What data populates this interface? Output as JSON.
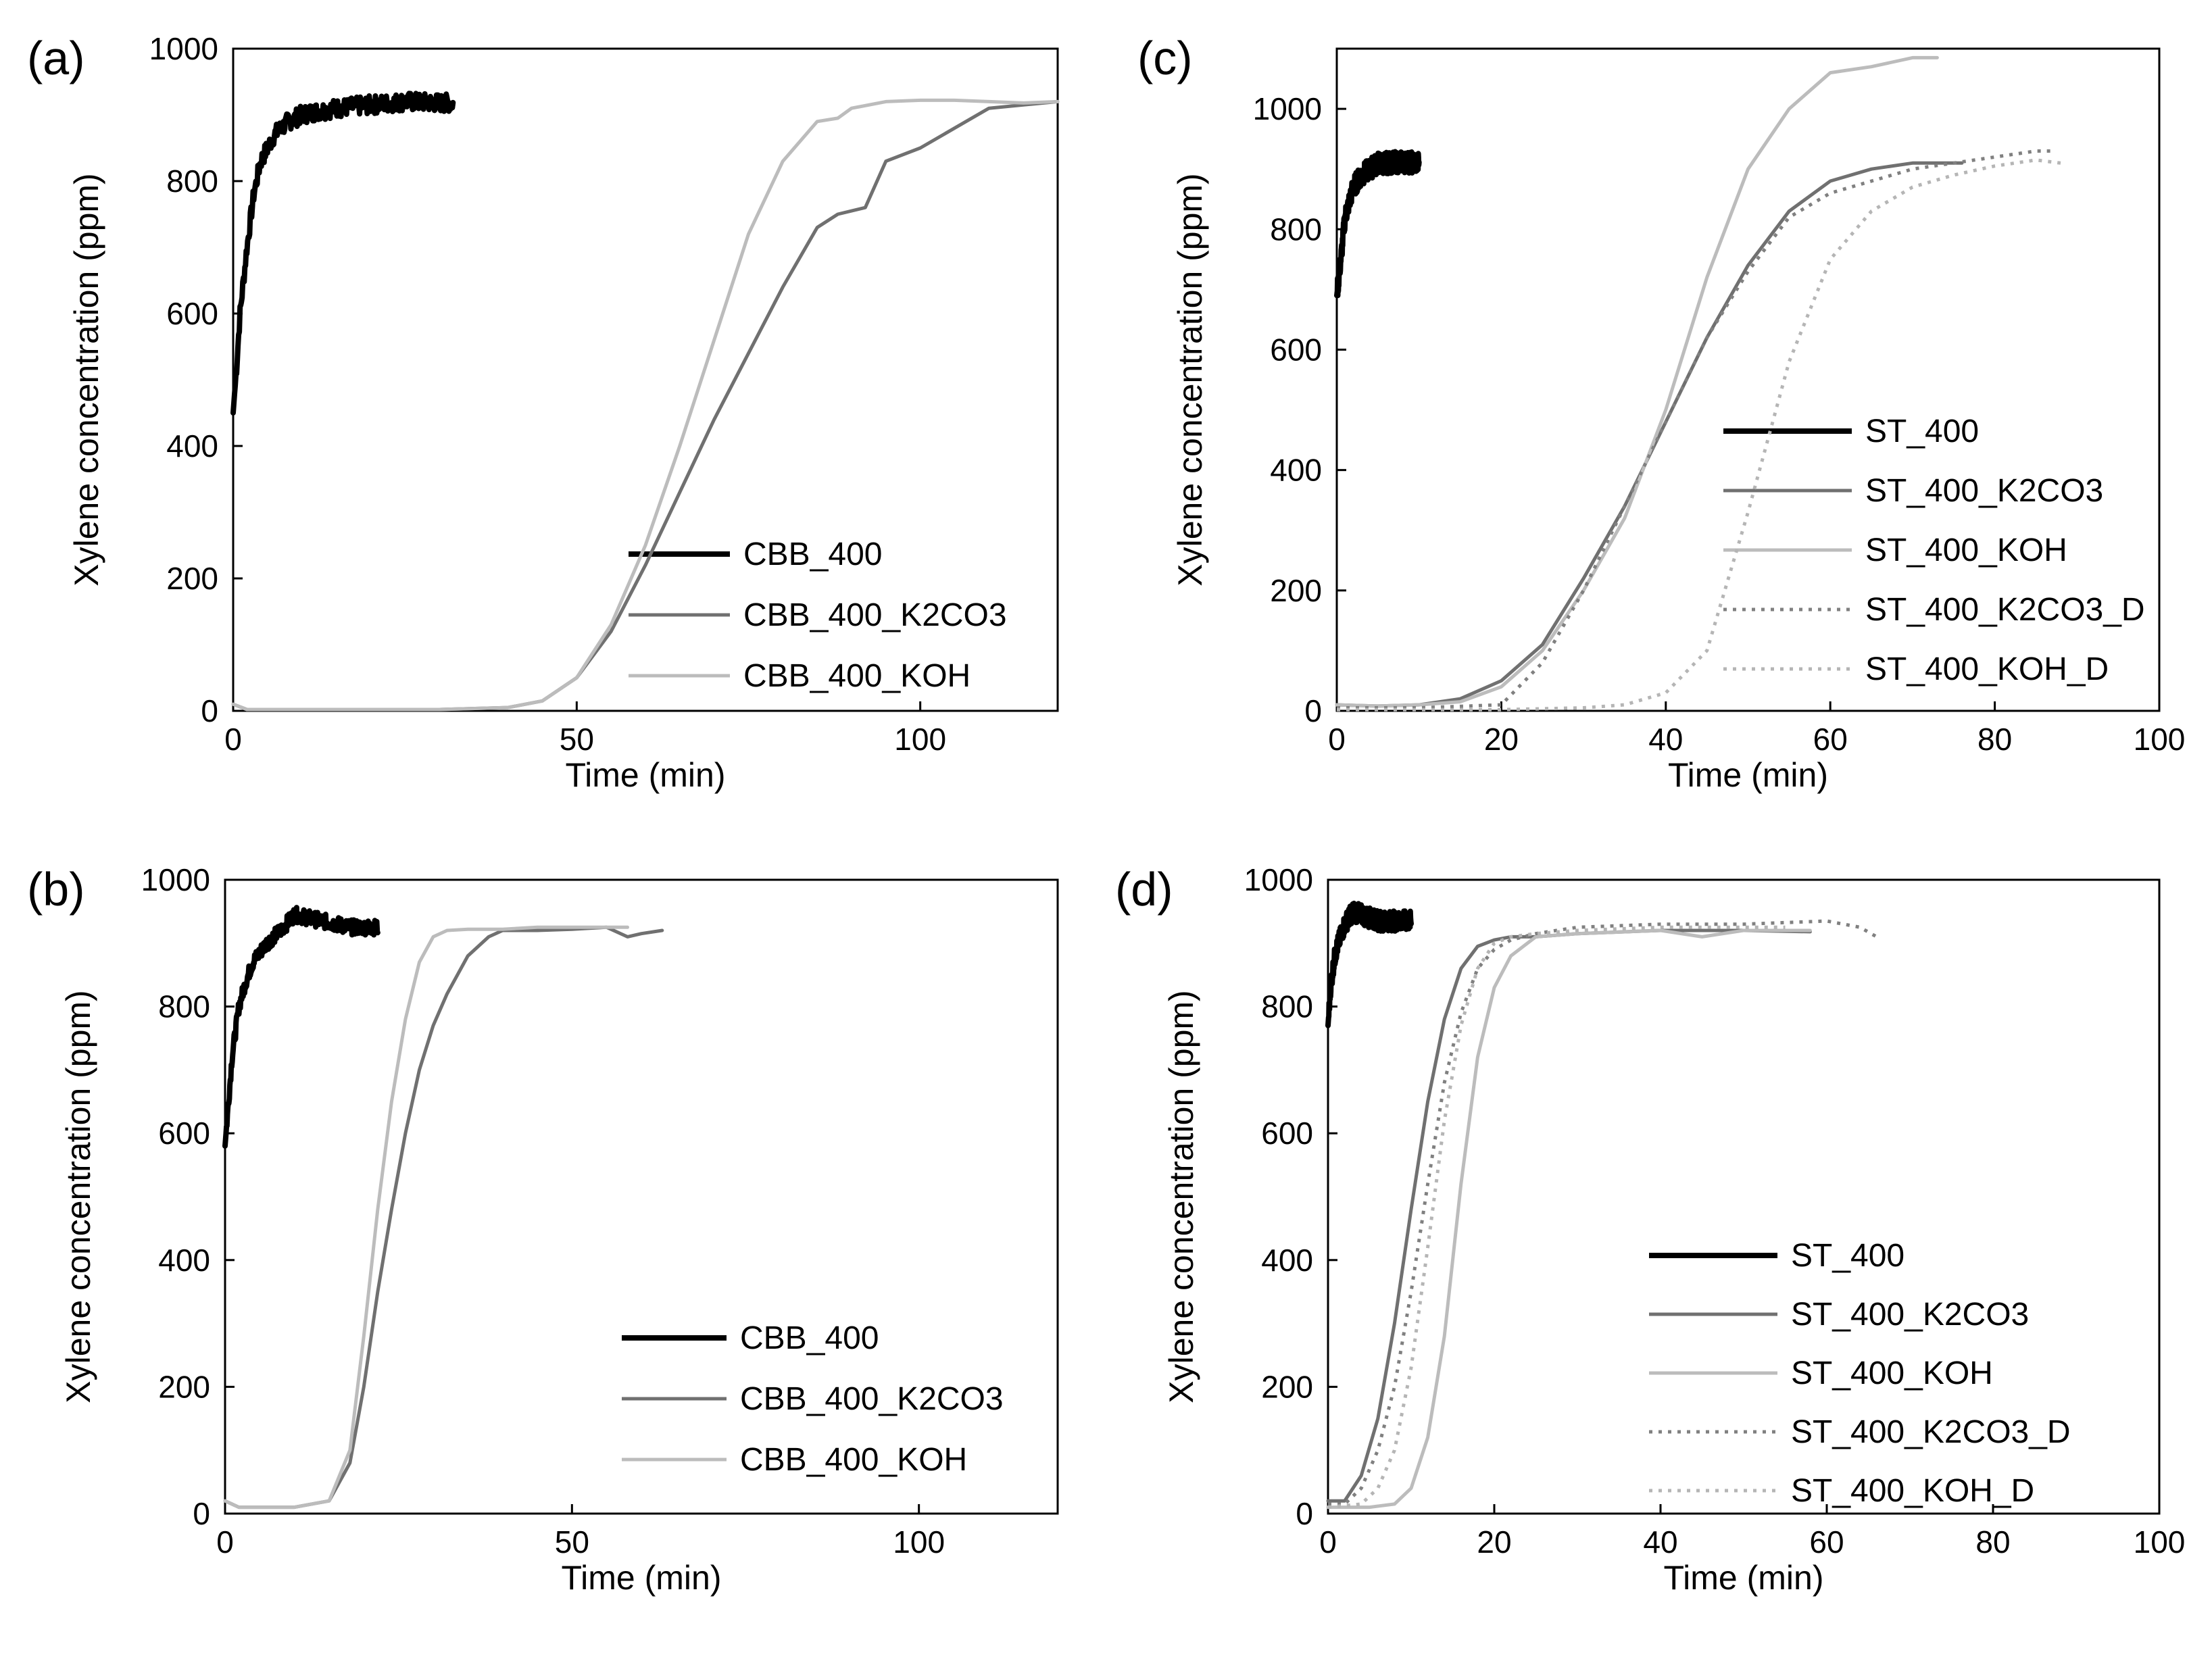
{
  "chart_data": [
    {
      "panel": "(a)",
      "type": "line",
      "xlabel": "Time (min)",
      "ylabel": "Xylene concentration (ppm)",
      "xlim": [
        0,
        120
      ],
      "ylim": [
        0,
        1000
      ],
      "xticks": [
        0,
        50,
        100
      ],
      "yticks": [
        0,
        200,
        400,
        600,
        800,
        1000
      ],
      "legend_position": "bottom-right",
      "series": [
        {
          "name": "CBB_400",
          "style": "solid",
          "color": "#000000",
          "width": 8,
          "noise": 14,
          "x": [
            0,
            0.5,
            1,
            2,
            3,
            4,
            6,
            8,
            10,
            12,
            15,
            20,
            25,
            30,
            32
          ],
          "y": [
            450,
            520,
            600,
            700,
            780,
            830,
            870,
            890,
            900,
            905,
            910,
            915,
            920,
            918,
            918
          ]
        },
        {
          "name": "CBB_400_K2CO3",
          "style": "solid",
          "color": "#707070",
          "width": 5,
          "noise": 0,
          "x": [
            0,
            2,
            10,
            20,
            30,
            40,
            45,
            50,
            55,
            60,
            65,
            70,
            75,
            80,
            85,
            88,
            92,
            95,
            100,
            105,
            110,
            115,
            120
          ],
          "y": [
            10,
            2,
            2,
            2,
            2,
            5,
            15,
            50,
            120,
            220,
            330,
            440,
            540,
            640,
            730,
            750,
            760,
            830,
            850,
            880,
            910,
            915,
            920
          ]
        },
        {
          "name": "CBB_400_KOH",
          "style": "solid",
          "color": "#bcbcbc",
          "width": 5,
          "noise": 0,
          "x": [
            0,
            2,
            10,
            20,
            30,
            40,
            45,
            50,
            55,
            60,
            65,
            70,
            75,
            80,
            85,
            88,
            90,
            95,
            100,
            105,
            110,
            115,
            120
          ],
          "y": [
            10,
            2,
            2,
            2,
            2,
            5,
            15,
            50,
            130,
            250,
            400,
            560,
            720,
            830,
            890,
            895,
            910,
            920,
            922,
            922,
            920,
            918,
            920
          ]
        }
      ]
    },
    {
      "panel": "(b)",
      "type": "line",
      "xlabel": "Time (min)",
      "ylabel": "Xylene concentration (ppm)",
      "xlim": [
        0,
        120
      ],
      "ylim": [
        0,
        1000
      ],
      "xticks": [
        0,
        50,
        100
      ],
      "yticks": [
        0,
        200,
        400,
        600,
        800,
        1000
      ],
      "legend_position": "bottom-right",
      "series": [
        {
          "name": "CBB_400",
          "style": "solid",
          "color": "#000000",
          "width": 8,
          "noise": 12,
          "x": [
            0,
            0.5,
            1,
            2,
            3,
            4,
            6,
            8,
            10,
            12,
            14,
            16,
            18,
            20,
            22
          ],
          "y": [
            580,
            650,
            720,
            800,
            840,
            870,
            900,
            920,
            945,
            940,
            935,
            930,
            925,
            925,
            925
          ]
        },
        {
          "name": "CBB_400_K2CO3",
          "style": "solid",
          "color": "#707070",
          "width": 5,
          "noise": 0,
          "x": [
            0,
            2,
            10,
            15,
            18,
            20,
            22,
            24,
            26,
            28,
            30,
            32,
            35,
            38,
            40,
            45,
            50,
            55,
            58,
            60,
            63
          ],
          "y": [
            20,
            10,
            10,
            20,
            80,
            200,
            350,
            480,
            600,
            700,
            770,
            820,
            880,
            910,
            920,
            920,
            922,
            925,
            910,
            915,
            920
          ]
        },
        {
          "name": "CBB_400_KOH",
          "style": "solid",
          "color": "#bcbcbc",
          "width": 5,
          "noise": 0,
          "x": [
            0,
            2,
            10,
            15,
            18,
            20,
            22,
            24,
            26,
            28,
            30,
            32,
            35,
            40,
            45,
            50,
            55,
            58
          ],
          "y": [
            20,
            10,
            10,
            20,
            100,
            280,
            480,
            650,
            780,
            870,
            910,
            920,
            922,
            922,
            925,
            925,
            925,
            925
          ]
        }
      ]
    },
    {
      "panel": "(c)",
      "type": "line",
      "xlabel": "Time (min)",
      "ylabel": "Xylene concentration (ppm)",
      "xlim": [
        0,
        100
      ],
      "ylim": [
        0,
        1100
      ],
      "xticks": [
        0,
        20,
        40,
        60,
        80,
        100
      ],
      "yticks": [
        0,
        200,
        400,
        600,
        800,
        1000
      ],
      "legend_position": "center-right",
      "series": [
        {
          "name": "ST_400",
          "style": "solid",
          "color": "#000000",
          "width": 8,
          "noise": 18,
          "x": [
            0,
            0.5,
            1,
            2,
            3,
            4,
            5,
            6,
            8,
            10
          ],
          "y": [
            690,
            750,
            820,
            870,
            890,
            900,
            910,
            910,
            912,
            910
          ]
        },
        {
          "name": "ST_400_K2CO3",
          "style": "solid",
          "color": "#707070",
          "width": 5,
          "noise": 0,
          "x": [
            0,
            5,
            10,
            15,
            20,
            25,
            30,
            35,
            40,
            45,
            50,
            55,
            60,
            65,
            70,
            76
          ],
          "y": [
            10,
            8,
            10,
            20,
            50,
            110,
            220,
            340,
            480,
            620,
            740,
            830,
            880,
            900,
            910,
            910
          ]
        },
        {
          "name": "ST_400_KOH",
          "style": "solid",
          "color": "#bcbcbc",
          "width": 5,
          "noise": 0,
          "x": [
            0,
            5,
            10,
            15,
            20,
            25,
            30,
            35,
            40,
            45,
            50,
            55,
            60,
            65,
            70,
            73
          ],
          "y": [
            10,
            8,
            10,
            15,
            40,
            100,
            200,
            320,
            500,
            720,
            900,
            1000,
            1060,
            1070,
            1085,
            1085
          ]
        },
        {
          "name": "ST_400_K2CO3_D",
          "style": "dotted",
          "color": "#808080",
          "width": 5,
          "noise": 0,
          "x": [
            0,
            10,
            20,
            25,
            30,
            35,
            40,
            45,
            50,
            55,
            60,
            65,
            70,
            75,
            80,
            85,
            87
          ],
          "y": [
            5,
            5,
            10,
            80,
            200,
            340,
            480,
            620,
            730,
            820,
            860,
            880,
            900,
            910,
            920,
            930,
            930
          ]
        },
        {
          "name": "ST_400_KOH_D",
          "style": "dotted",
          "color": "#b5b5b5",
          "width": 5,
          "noise": 0,
          "x": [
            0,
            10,
            20,
            30,
            35,
            40,
            45,
            50,
            55,
            60,
            65,
            70,
            75,
            80,
            85,
            88
          ],
          "y": [
            2,
            2,
            2,
            5,
            10,
            30,
            100,
            330,
            580,
            750,
            830,
            870,
            890,
            905,
            915,
            910
          ]
        }
      ]
    },
    {
      "panel": "(d)",
      "type": "line",
      "xlabel": "Time (min)",
      "ylabel": "Xylene concentration (ppm)",
      "xlim": [
        0,
        100
      ],
      "ylim": [
        0,
        1000
      ],
      "xticks": [
        0,
        20,
        40,
        60,
        80,
        100
      ],
      "yticks": [
        0,
        200,
        400,
        600,
        800,
        1000
      ],
      "legend_position": "bottom-right",
      "series": [
        {
          "name": "ST_400",
          "style": "solid",
          "color": "#000000",
          "width": 8,
          "noise": 16,
          "x": [
            0,
            0.3,
            0.7,
            1,
            1.5,
            2,
            3,
            4,
            5,
            6,
            8,
            10
          ],
          "y": [
            770,
            830,
            870,
            890,
            910,
            930,
            950,
            945,
            940,
            935,
            935,
            935
          ]
        },
        {
          "name": "ST_400_K2CO3",
          "style": "solid",
          "color": "#707070",
          "width": 5,
          "noise": 0,
          "x": [
            0,
            2,
            4,
            6,
            8,
            10,
            12,
            14,
            16,
            18,
            20,
            22,
            25,
            30,
            40,
            50,
            58
          ],
          "y": [
            20,
            20,
            60,
            150,
            300,
            480,
            650,
            780,
            860,
            895,
            905,
            910,
            910,
            915,
            920,
            920,
            918
          ]
        },
        {
          "name": "ST_400_KOH",
          "style": "solid",
          "color": "#bcbcbc",
          "width": 5,
          "noise": 0,
          "x": [
            0,
            5,
            8,
            10,
            12,
            14,
            16,
            18,
            20,
            22,
            25,
            30,
            40,
            45,
            50,
            55,
            58
          ],
          "y": [
            10,
            10,
            15,
            40,
            120,
            280,
            520,
            720,
            830,
            880,
            910,
            915,
            920,
            910,
            920,
            920,
            920
          ]
        },
        {
          "name": "ST_400_K2CO3_D",
          "style": "dotted",
          "color": "#808080",
          "width": 5,
          "noise": 0,
          "x": [
            0,
            2,
            4,
            6,
            8,
            10,
            12,
            14,
            16,
            18,
            20,
            22,
            25,
            30,
            40,
            50,
            60,
            64,
            66
          ],
          "y": [
            15,
            15,
            40,
            100,
            200,
            350,
            520,
            680,
            790,
            860,
            890,
            905,
            915,
            925,
            930,
            930,
            935,
            925,
            910
          ]
        },
        {
          "name": "ST_400_KOH_D",
          "style": "dotted",
          "color": "#b5b5b5",
          "width": 5,
          "noise": 0,
          "x": [
            0,
            4,
            6,
            8,
            10,
            12,
            14,
            16,
            18,
            20,
            22,
            25,
            30,
            40,
            50,
            55
          ],
          "y": [
            10,
            15,
            40,
            100,
            230,
            420,
            620,
            770,
            860,
            900,
            910,
            915,
            920,
            925,
            925,
            925
          ]
        }
      ]
    }
  ]
}
